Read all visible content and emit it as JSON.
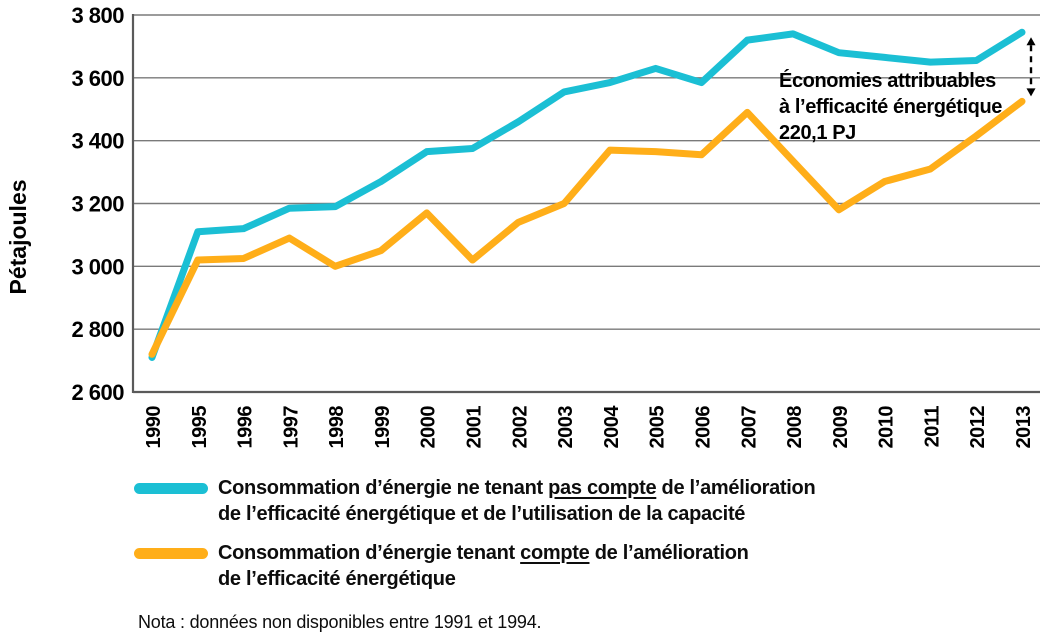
{
  "chart_data": {
    "type": "line",
    "title": "",
    "ylabel": "Pétajoules",
    "xlabel": "",
    "ylim": [
      2600,
      3800
    ],
    "grid": "horizontal",
    "legend_position": "bottom",
    "y_ticks": [
      {
        "value": 3800,
        "label": "3 800"
      },
      {
        "value": 3600,
        "label": "3 600"
      },
      {
        "value": 3400,
        "label": "3 400"
      },
      {
        "value": 3200,
        "label": "3 200"
      },
      {
        "value": 3000,
        "label": "3 000"
      },
      {
        "value": 2800,
        "label": "2 800"
      },
      {
        "value": 2600,
        "label": "2 600"
      }
    ],
    "categories": [
      "1990",
      "1995",
      "1996",
      "1997",
      "1998",
      "1999",
      "2000",
      "2001",
      "2002",
      "2003",
      "2004",
      "2005",
      "2006",
      "2007",
      "2008",
      "2009",
      "2010",
      "2011",
      "2012",
      "2013"
    ],
    "series": [
      {
        "name": "Consommation d’énergie ne tenant pas compte de l’amélioration de l’efficacité énergétique et de l’utilisation de la capacité",
        "color": "#1BBFD4",
        "values": [
          2710,
          3110,
          3120,
          3185,
          3190,
          3270,
          3365,
          3375,
          3460,
          3555,
          3585,
          3630,
          3585,
          3720,
          3740,
          3680,
          3665,
          3650,
          3655,
          3745
        ]
      },
      {
        "name": "Consommation d’énergie tenant compte de l’amélioration de l’efficacité énergétique",
        "color": "#FFAE19",
        "values": [
          2720,
          3020,
          3025,
          3090,
          3000,
          3050,
          3170,
          3020,
          3140,
          3200,
          3370,
          3365,
          3355,
          3490,
          3335,
          3180,
          3270,
          3310,
          3415,
          3525
        ]
      }
    ],
    "annotation": {
      "line1": "Économies attribuables",
      "line2": "à l’efficacité énergétique",
      "line3": "220,1 PJ"
    }
  },
  "legend": {
    "items": [
      {
        "pre": "Consommation d’énergie ne tenant ",
        "underlined": "pas compte",
        "post": " de l’amélioration",
        "line2": "de l’efficacité énergétique et de l’utilisation de la capacité",
        "color": "#1BBFD4"
      },
      {
        "pre": "Consommation d’énergie tenant ",
        "underlined": "compte",
        "post": " de l’amélioration",
        "line2": "de l’efficacité énergétique",
        "color": "#FFAE19"
      }
    ]
  },
  "note": "Nota : données non disponibles entre 1991 et 1994."
}
